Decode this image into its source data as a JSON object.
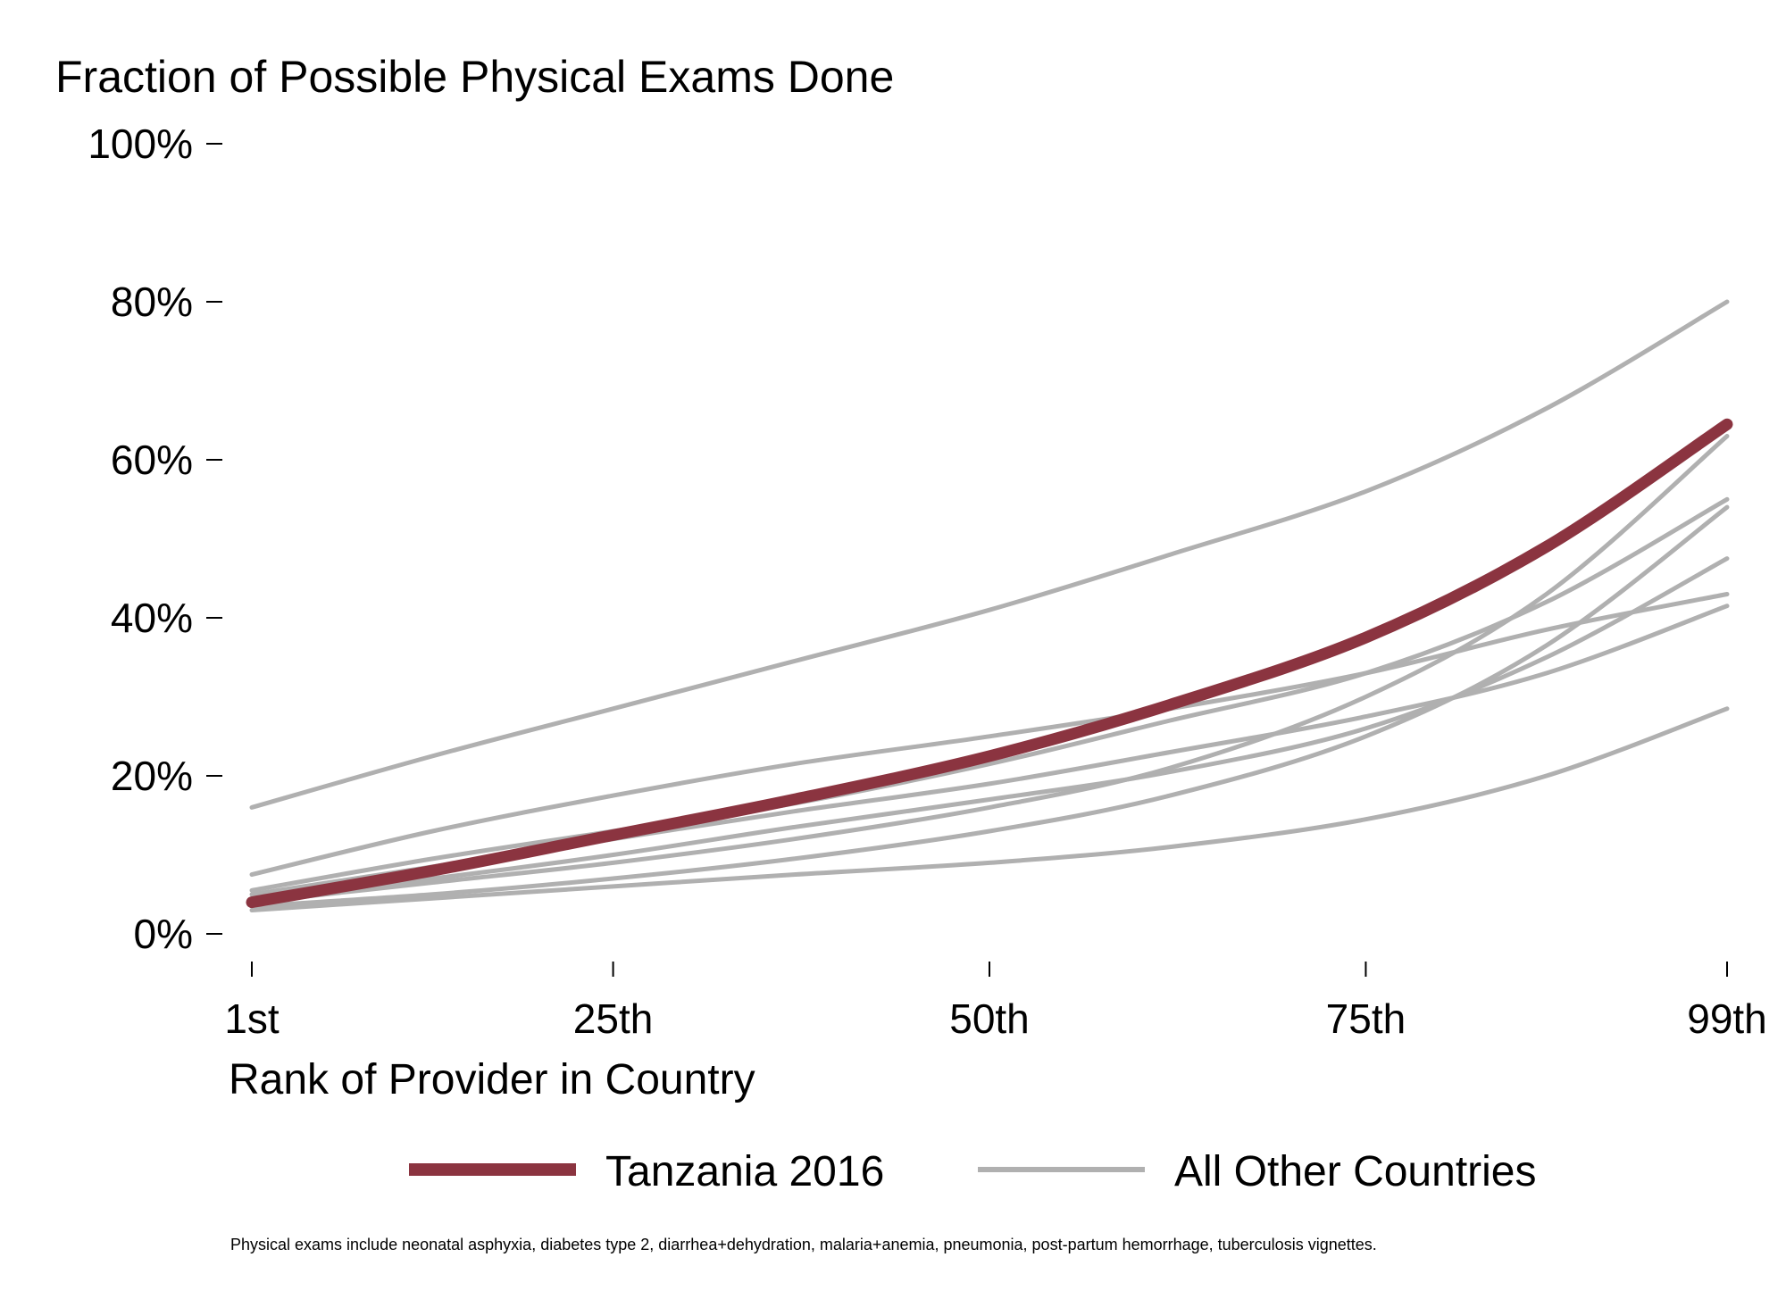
{
  "chart_data": {
    "type": "line",
    "title": "Fraction of Possible Physical Exams Done",
    "xlabel": "Rank of Provider in Country",
    "ylabel": "",
    "x_ticks": [
      {
        "value": 1,
        "label": "1st"
      },
      {
        "value": 25,
        "label": "25th"
      },
      {
        "value": 50,
        "label": "50th"
      },
      {
        "value": 75,
        "label": "75th"
      },
      {
        "value": 99,
        "label": "99th"
      }
    ],
    "y_ticks": [
      {
        "value": 0,
        "label": "0%"
      },
      {
        "value": 20,
        "label": "20%"
      },
      {
        "value": 40,
        "label": "40%"
      },
      {
        "value": 60,
        "label": "60%"
      },
      {
        "value": 80,
        "label": "80%"
      },
      {
        "value": 100,
        "label": "100%"
      }
    ],
    "xlim": [
      1,
      99
    ],
    "ylim": [
      0,
      100
    ],
    "grid": false,
    "legend_position": "bottom",
    "x": [
      1,
      13,
      25,
      37,
      50,
      62,
      75,
      87,
      99
    ],
    "highlight_color": "#8b3440",
    "other_color": "#b0b0b0",
    "legend": [
      {
        "label": "Tanzania 2016",
        "color": "#8b3440"
      },
      {
        "label": "All Other Countries",
        "color": "#b0b0b0"
      }
    ],
    "series": [
      {
        "group": "other",
        "values": [
          16,
          22.5,
          28.5,
          34.5,
          41,
          48,
          56,
          66.5,
          80
        ]
      },
      {
        "group": "other",
        "values": [
          7.5,
          13,
          17.5,
          21.5,
          25,
          28.5,
          33,
          38.5,
          43
        ]
      },
      {
        "group": "other",
        "values": [
          5.5,
          9.5,
          13,
          16.5,
          21.5,
          27,
          33,
          42,
          55
        ]
      },
      {
        "group": "other",
        "values": [
          5,
          8.5,
          12,
          15.5,
          19,
          23,
          27.5,
          33,
          41.5
        ]
      },
      {
        "group": "other",
        "values": [
          4.5,
          7,
          10,
          13.5,
          17,
          20.5,
          26,
          35,
          47.5
        ]
      },
      {
        "group": "other",
        "values": [
          4,
          6.5,
          9,
          12,
          16,
          21,
          30,
          43,
          63
        ]
      },
      {
        "group": "other",
        "values": [
          3.5,
          5,
          7,
          9.5,
          13,
          17.5,
          25,
          36.5,
          54
        ]
      },
      {
        "group": "other",
        "values": [
          3,
          4.5,
          6,
          7.5,
          9,
          11,
          14.5,
          20,
          28.5
        ]
      },
      {
        "group": "highlight",
        "values": [
          4,
          8,
          12.5,
          17,
          22.5,
          29,
          37.5,
          49,
          64.5
        ]
      }
    ]
  },
  "footnote": "Physical exams include neonatal asphyxia, diabetes type 2, diarrhea+dehydration, malaria+anemia, pneumonia, post-partum hemorrhage, tuberculosis vignettes."
}
